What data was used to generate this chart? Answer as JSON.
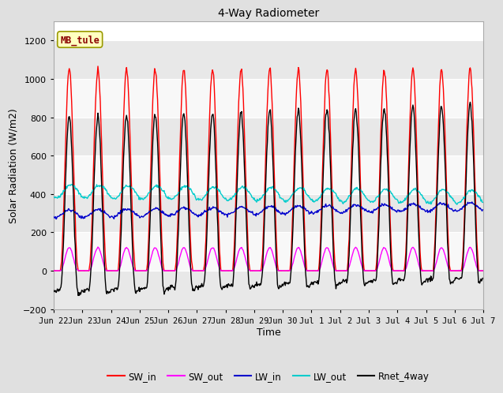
{
  "title": "4-Way Radiometer",
  "xlabel": "Time",
  "ylabel": "Solar Radiation (W/m2)",
  "ylim": [
    -200,
    1300
  ],
  "yticks": [
    -200,
    0,
    200,
    400,
    600,
    800,
    1000,
    1200
  ],
  "num_days": 15,
  "dt_hours": 0.5,
  "site_label": "MB_tule",
  "fig_bg_color": "#e0e0e0",
  "plot_bg_color": "#ffffff",
  "band_colors": [
    "#e8e8e8",
    "#f8f8f8"
  ],
  "grid_color": "#d0d0d0",
  "colors": {
    "SW_in": "#ff0000",
    "SW_out": "#ff00ff",
    "LW_in": "#0000cc",
    "LW_out": "#00cccc",
    "Rnet_4way": "#000000"
  },
  "xtick_labels": [
    "Jun 22",
    "Jun 23",
    "Jun 24",
    "Jun 25",
    "Jun 26",
    "Jun 27",
    "Jun 28",
    "Jun 29",
    "Jun 30",
    "Jul 1",
    "Jul 2",
    "Jul 3",
    "Jul 4",
    "Jul 5",
    "Jul 6",
    "Jul 7"
  ],
  "legend_labels": [
    "SW_in",
    "SW_out",
    "LW_in",
    "LW_out",
    "Rnet_4way"
  ]
}
